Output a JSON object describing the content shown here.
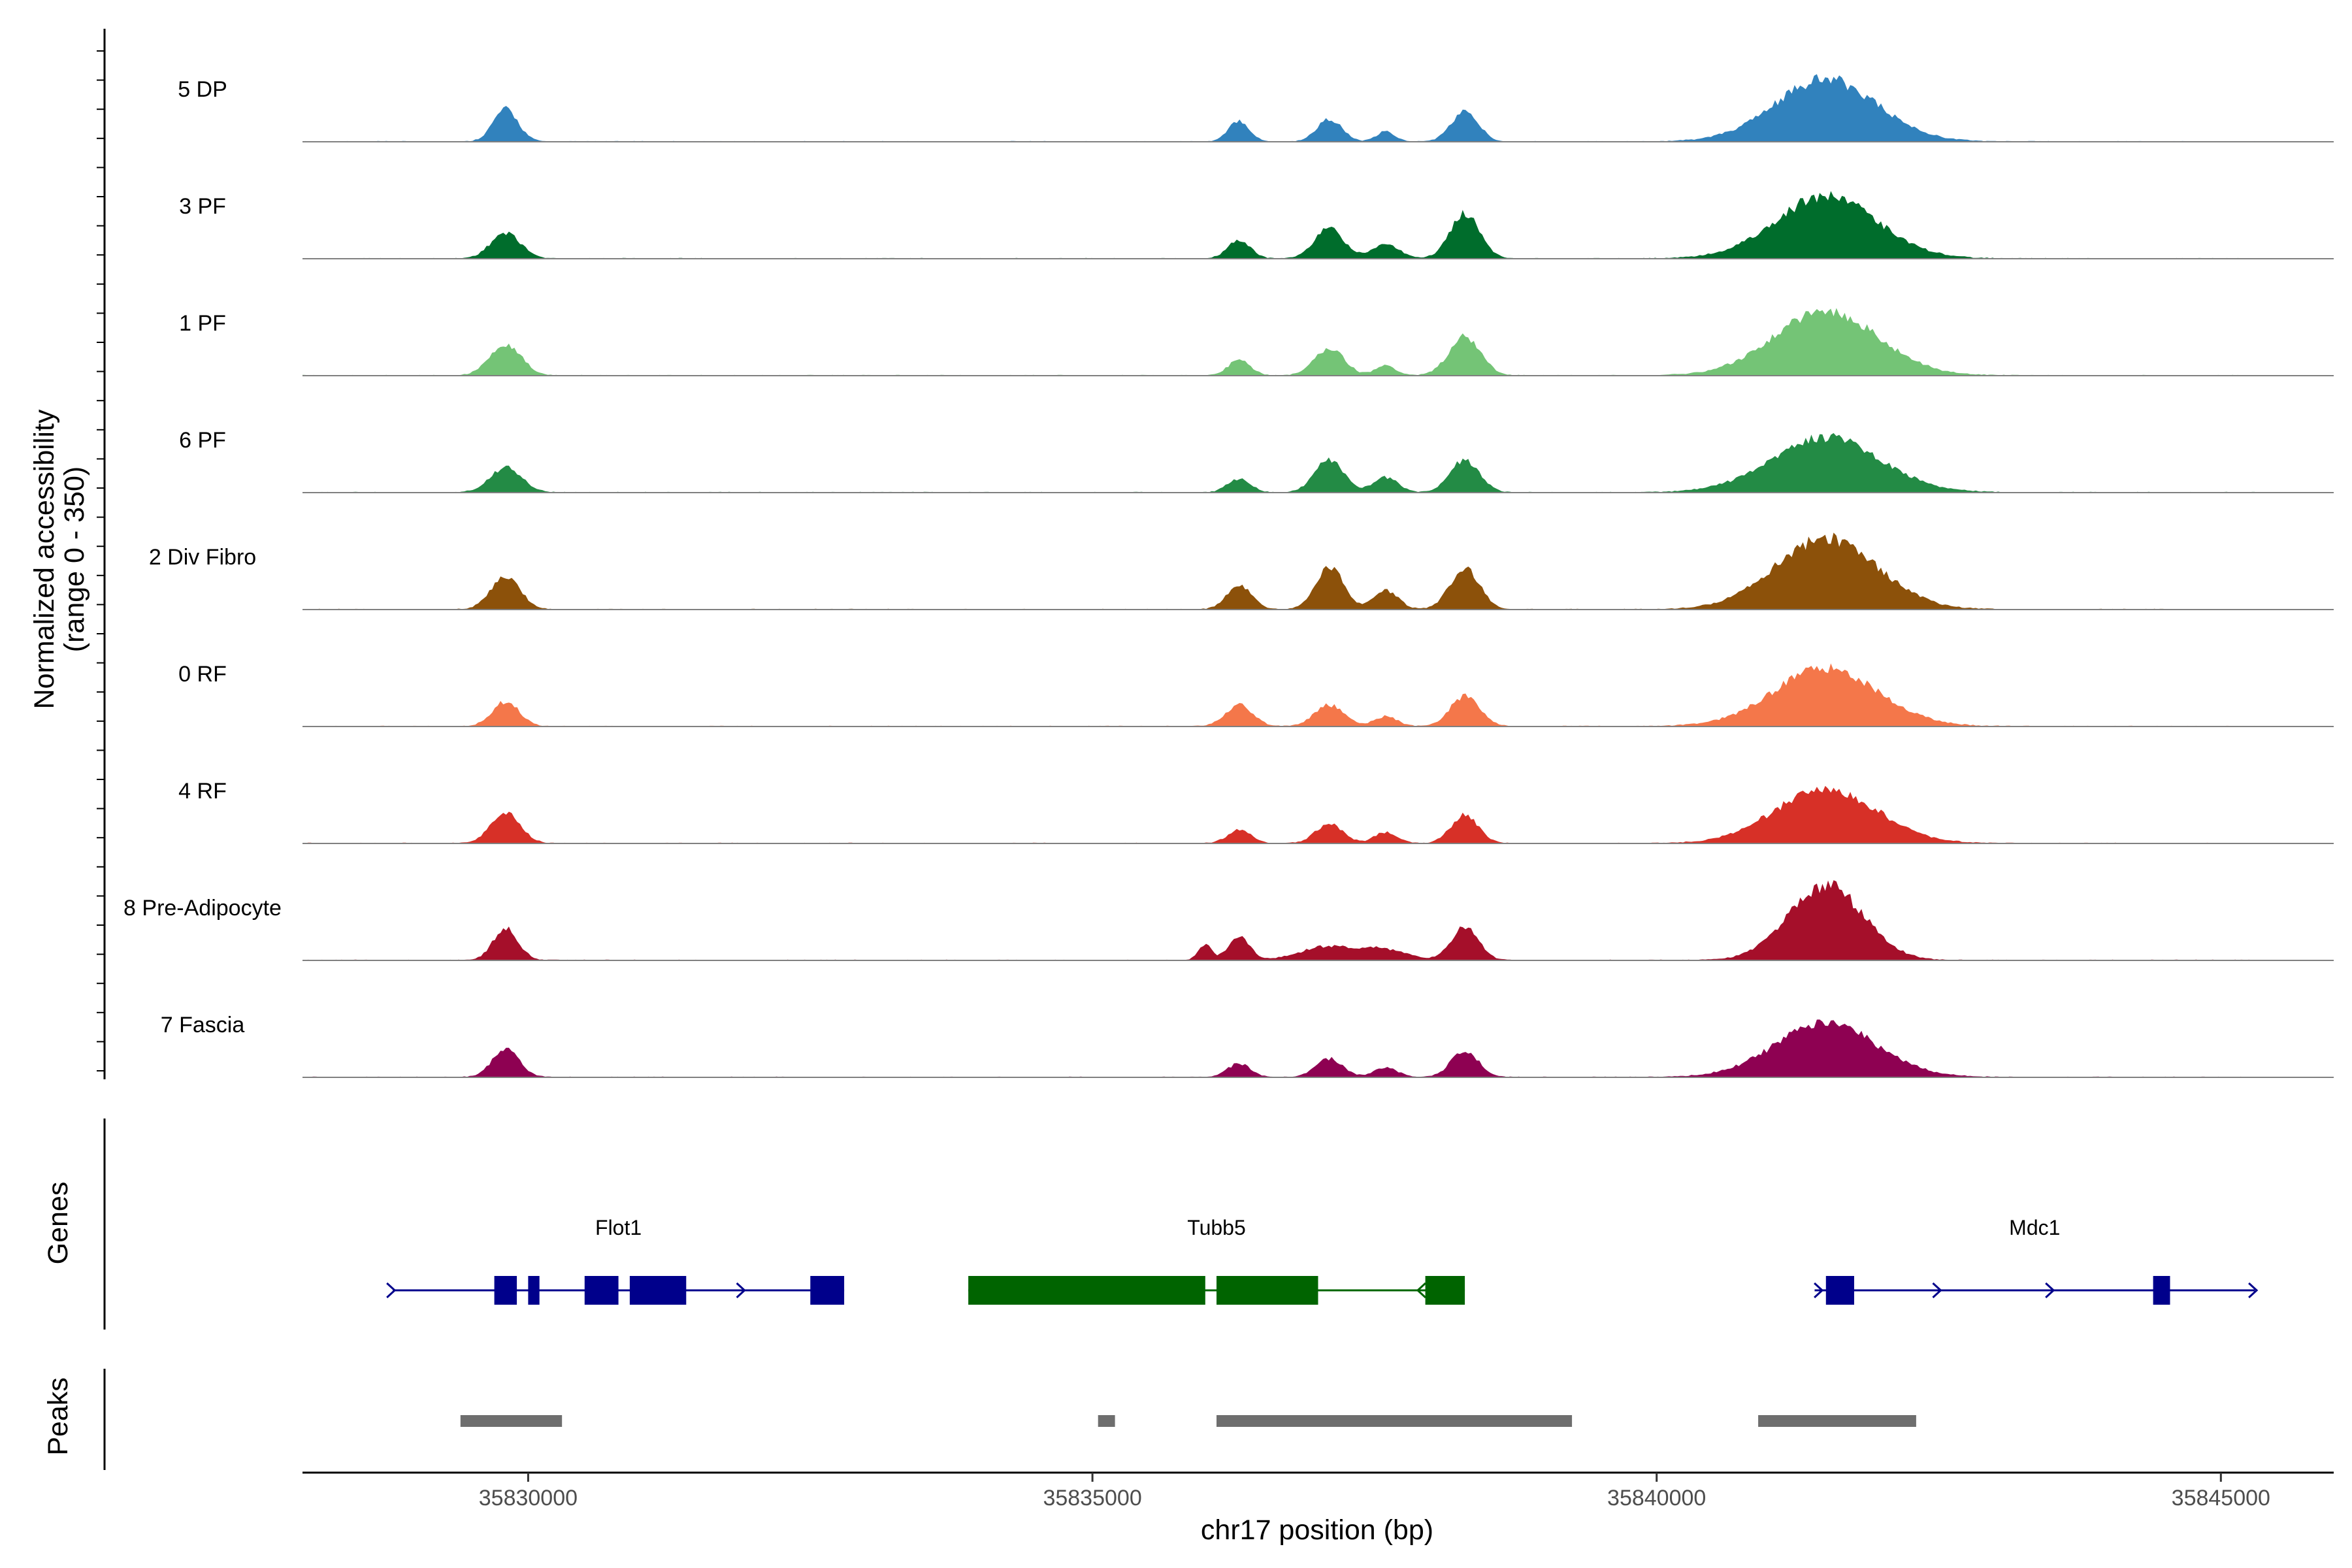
{
  "chart_data": {
    "type": "area",
    "title": "",
    "xlabel": "chr17 position (bp)",
    "xlim": [
      35828000,
      35846000
    ],
    "x_ticks": [
      35830000,
      35835000,
      35840000,
      35845000
    ],
    "x_tick_labels": [
      "35830000",
      "35835000",
      "35840000",
      "35845000"
    ],
    "coverage": {
      "ylabel": "Normalized accessibility",
      "ylabel_range": "(range 0 - 350)",
      "ylim": [
        0,
        350
      ],
      "region": [
        35828000,
        35845300
      ],
      "series": [
        {
          "name": "5 DP",
          "label": "5 DP",
          "color": "#3182BD",
          "peaks": [
            [
              35829800,
              130,
              110
            ],
            [
              35836300,
              85,
              90
            ],
            [
              35837100,
              90,
              110
            ],
            [
              35837600,
              40,
              80
            ],
            [
              35838300,
              120,
              120
            ],
            [
              35841500,
              250,
              450
            ]
          ]
        },
        {
          "name": "3 PF",
          "label": "3 PF",
          "color": "#006D2C",
          "peaks": [
            [
              35829800,
              105,
              130
            ],
            [
              35836300,
              75,
              100
            ],
            [
              35837100,
              120,
              130
            ],
            [
              35837600,
              55,
              120
            ],
            [
              35838300,
              180,
              130
            ],
            [
              35841500,
              250,
              450
            ]
          ]
        },
        {
          "name": "1 PF",
          "label": "1 PF",
          "color": "#74C476",
          "peaks": [
            [
              35829800,
              125,
              140
            ],
            [
              35836300,
              60,
              100
            ],
            [
              35837100,
              110,
              130
            ],
            [
              35837600,
              40,
              90
            ],
            [
              35838300,
              155,
              140
            ],
            [
              35841500,
              260,
              460
            ]
          ]
        },
        {
          "name": "6 PF",
          "label": "6 PF",
          "color": "#238B45",
          "peaks": [
            [
              35829800,
              100,
              140
            ],
            [
              35836300,
              55,
              100
            ],
            [
              35837100,
              130,
              130
            ],
            [
              35837600,
              60,
              110
            ],
            [
              35838300,
              130,
              130
            ],
            [
              35841500,
              220,
              480
            ]
          ]
        },
        {
          "name": "2 Div Fibro",
          "label": "2 Div Fibro",
          "color": "#8C510A",
          "peaks": [
            [
              35829800,
              130,
              130
            ],
            [
              35836300,
              95,
              110
            ],
            [
              35837100,
              175,
              120
            ],
            [
              35837600,
              75,
              110
            ],
            [
              35838300,
              165,
              130
            ],
            [
              35841500,
              285,
              450
            ]
          ]
        },
        {
          "name": "0 RF",
          "label": "0 RF",
          "color": "#F4774A",
          "peaks": [
            [
              35829800,
              100,
              120
            ],
            [
              35836300,
              85,
              120
            ],
            [
              35837100,
              85,
              130
            ],
            [
              35837600,
              40,
              100
            ],
            [
              35838300,
              120,
              130
            ],
            [
              35841500,
              235,
              460
            ]
          ]
        },
        {
          "name": "4 RF",
          "label": "4 RF",
          "color": "#D73027",
          "peaks": [
            [
              35829800,
              125,
              130
            ],
            [
              35836300,
              55,
              100
            ],
            [
              35837100,
              80,
              120
            ],
            [
              35837600,
              45,
              100
            ],
            [
              35838300,
              115,
              120
            ],
            [
              35841500,
              220,
              450
            ]
          ]
        },
        {
          "name": "8 Pre-Adipocyte",
          "label": "8 Pre-Adipocyte",
          "color": "#A50F2A",
          "peaks": [
            [
              35829800,
              130,
              110
            ],
            [
              35836000,
              60,
              60
            ],
            [
              35836300,
              100,
              90
            ],
            [
              35837100,
              55,
              250
            ],
            [
              35837600,
              40,
              200
            ],
            [
              35838300,
              135,
              120
            ],
            [
              35841500,
              300,
              330
            ]
          ]
        },
        {
          "name": "7 Fascia",
          "label": "7 Fascia",
          "color": "#8E0152",
          "peaks": [
            [
              35829800,
              110,
              120
            ],
            [
              35836300,
              55,
              100
            ],
            [
              35837100,
              75,
              120
            ],
            [
              35837600,
              40,
              100
            ],
            [
              35838300,
              105,
              120
            ],
            [
              35841500,
              215,
              450
            ]
          ]
        }
      ]
    },
    "genes": {
      "track_label": "Genes",
      "items": [
        {
          "name": "Flot1",
          "strand": "+",
          "color": "#00008B",
          "start": 35828800,
          "end": 35832800,
          "exons": [
            [
              35829700,
              35829900
            ],
            [
              35830000,
              35830100
            ],
            [
              35830500,
              35830800
            ],
            [
              35830900,
              35831400
            ],
            [
              35832500,
              35832800
            ]
          ],
          "arrows": [
            35828800,
            35831000,
            35831900
          ]
        },
        {
          "name": "Tubb5",
          "strand": "-",
          "color": "#006400",
          "start": 35833900,
          "end": 35838300,
          "exons": [
            [
              35833900,
              35836000
            ],
            [
              35836100,
              35837000
            ],
            [
              35837950,
              35838300
            ]
          ],
          "arrows": [
            35837900
          ]
        },
        {
          "name": "Mdc1",
          "strand": "+",
          "color": "#00008B",
          "start": 35841400,
          "end": 35845300,
          "exons": [
            [
              35841500,
              35841750
            ],
            [
              35844400,
              35844550
            ]
          ],
          "arrows": [
            35841450,
            35842500,
            35843500,
            35845300
          ]
        }
      ]
    },
    "peaks": {
      "track_label": "Peaks",
      "color": "#6E6E6E",
      "intervals": [
        [
          35829400,
          35830300
        ],
        [
          35835050,
          35835200
        ],
        [
          35836100,
          35839250
        ],
        [
          35840900,
          35842300
        ]
      ]
    }
  }
}
